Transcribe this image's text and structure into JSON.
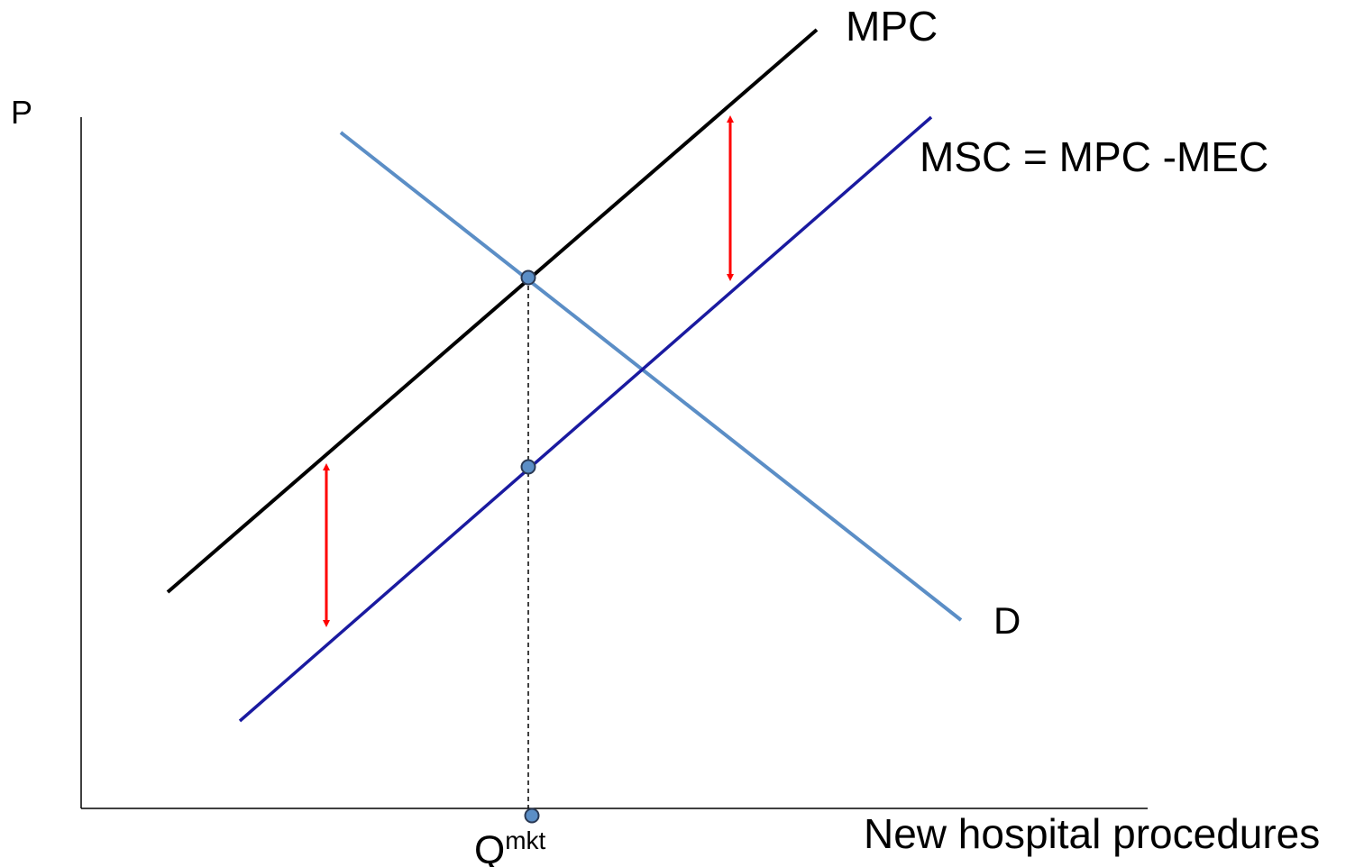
{
  "chart_data": {
    "type": "line",
    "title": "",
    "xlabel": "New hospital procedures",
    "ylabel": "P",
    "grid": false,
    "legend": "none",
    "series": [
      {
        "name": "MPC",
        "color": "#000000"
      },
      {
        "name": "MSC = MPC -MEC",
        "color": "#1a1aa0"
      },
      {
        "name": "D",
        "color": "#5b8ec6"
      }
    ],
    "marked_quantity": {
      "label": "Q",
      "superscript": "mkt"
    },
    "external_cost_arrows": {
      "count": 2,
      "color": "#ff0000"
    }
  }
}
